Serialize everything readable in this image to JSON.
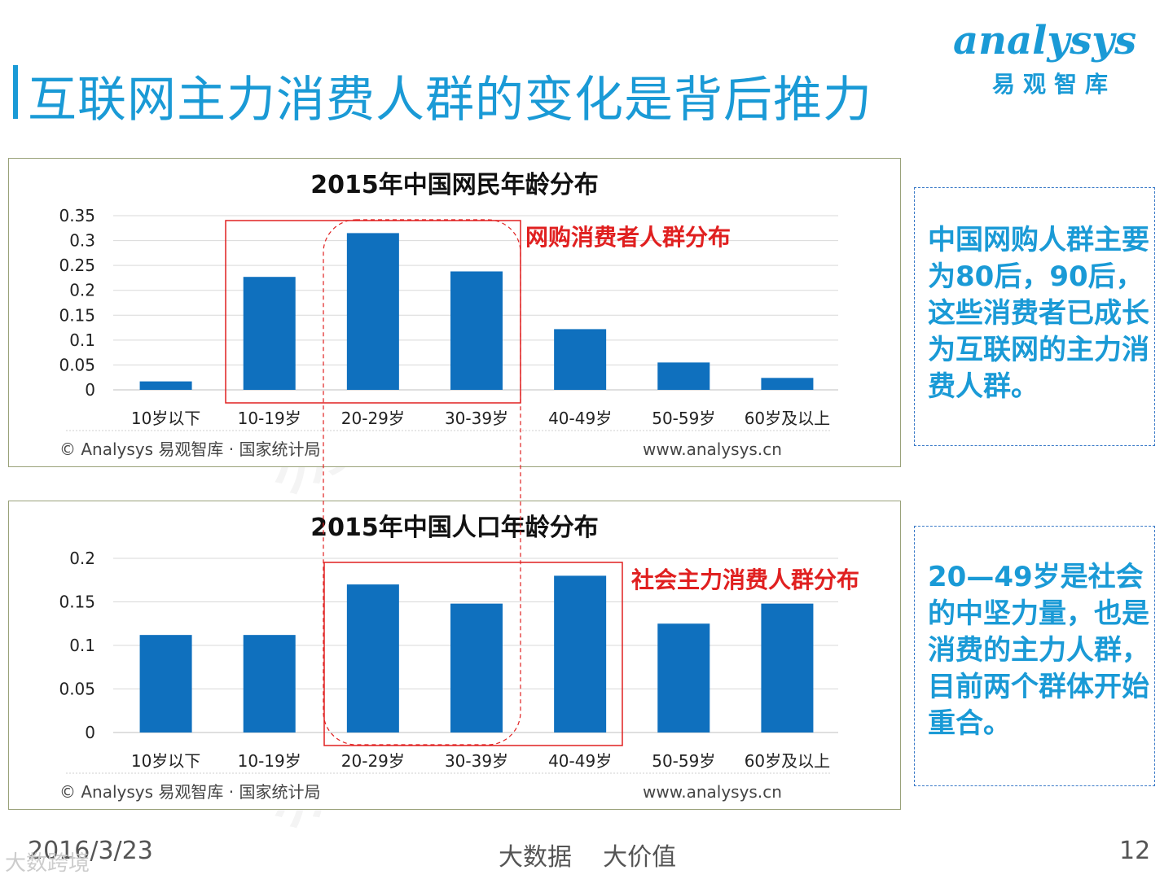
{
  "title": "互联网主力消费人群的变化是背后推力",
  "logo": {
    "main": "analysys",
    "sub": "易观智库"
  },
  "footer": {
    "date": "2016/3/23",
    "center": "大数据    大价值",
    "page": "12"
  },
  "watermark": "大数跨境",
  "background_watermark": "易观智库",
  "notes": {
    "top": "中国网购人群主要为80后，90后，这些消费者已成长为互联网的主力消费人群。",
    "bottom": "20—49岁是社会的中坚力量，也是消费的主力人群，目前两个群体开始重合。"
  },
  "colors": {
    "bar": "#0f70be",
    "accent": "#1a9ad6",
    "highlight": "#e02020"
  },
  "chart_data": [
    {
      "type": "bar",
      "title": "2015年中国网民年龄分布",
      "categories": [
        "10岁以下",
        "10-19岁",
        "20-29岁",
        "30-39岁",
        "40-49岁",
        "50-59岁",
        "60岁及以上"
      ],
      "values": [
        0.017,
        0.227,
        0.315,
        0.238,
        0.122,
        0.055,
        0.024
      ],
      "ylim": [
        0,
        0.35
      ],
      "yticks": [
        "0",
        "0.05",
        "0.1",
        "0.15",
        "0.2",
        "0.25",
        "0.3",
        "0.35"
      ],
      "annotation": "网购消费者人群分布",
      "source": "© Analysys 易观智库 · 国家统计局",
      "site": "www.analysys.cn"
    },
    {
      "type": "bar",
      "title": "2015年中国人口年龄分布",
      "categories": [
        "10岁以下",
        "10-19岁",
        "20-29岁",
        "30-39岁",
        "40-49岁",
        "50-59岁",
        "60岁及以上"
      ],
      "values": [
        0.112,
        0.112,
        0.17,
        0.148,
        0.18,
        0.125,
        0.148
      ],
      "ylim": [
        0,
        0.2
      ],
      "yticks": [
        "0",
        "0.05",
        "0.1",
        "0.15",
        "0.2"
      ],
      "annotation": "社会主力消费人群分布",
      "source": "© Analysys 易观智库 · 国家统计局",
      "site": "www.analysys.cn"
    }
  ]
}
